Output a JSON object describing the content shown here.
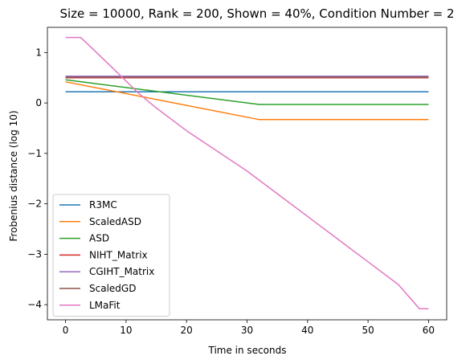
{
  "chart_data": {
    "type": "line",
    "title": "Size = 10000, Rank = 200, Shown = 40%, Condition Number = 2",
    "xlabel": "Time in seconds",
    "ylabel": "Frobenius distance (log 10)",
    "xlim": [
      -3,
      63
    ],
    "ylim": [
      -4.3,
      1.5
    ],
    "xticks": [
      0,
      10,
      20,
      30,
      40,
      50,
      60
    ],
    "yticks": [
      -4,
      -3,
      -2,
      -1,
      0,
      1
    ],
    "grid": false,
    "legend_position": "lower-left",
    "series": [
      {
        "name": "R3MC",
        "color": "#1f77b4",
        "x": [
          0,
          60
        ],
        "y": [
          0.22,
          0.22
        ]
      },
      {
        "name": "ScaledASD",
        "color": "#ff7f0e",
        "x": [
          0,
          32,
          60
        ],
        "y": [
          0.42,
          -0.33,
          -0.33
        ]
      },
      {
        "name": "ASD",
        "color": "#2ca02c",
        "x": [
          0,
          32,
          60
        ],
        "y": [
          0.46,
          -0.03,
          -0.03
        ]
      },
      {
        "name": "NIHT_Matrix",
        "color": "#d62728",
        "x": [
          0,
          60
        ],
        "y": [
          0.5,
          0.5
        ]
      },
      {
        "name": "CGIHT_Matrix",
        "color": "#9467bd",
        "x": [
          0,
          60
        ],
        "y": [
          0.53,
          0.53
        ]
      },
      {
        "name": "ScaledGD",
        "color": "#8c564b",
        "x": [
          0,
          60
        ],
        "y": [
          0.51,
          0.51
        ]
      },
      {
        "name": "LMaFit",
        "color": "#e377c2",
        "x": [
          0,
          2.5,
          6,
          9,
          12,
          15,
          20,
          25,
          30,
          35,
          40,
          45,
          50,
          55,
          58.5,
          60
        ],
        "y": [
          1.3,
          1.3,
          0.9,
          0.55,
          0.2,
          -0.1,
          -0.55,
          -0.95,
          -1.35,
          -1.8,
          -2.25,
          -2.7,
          -3.15,
          -3.6,
          -4.08,
          -4.08
        ]
      }
    ]
  }
}
